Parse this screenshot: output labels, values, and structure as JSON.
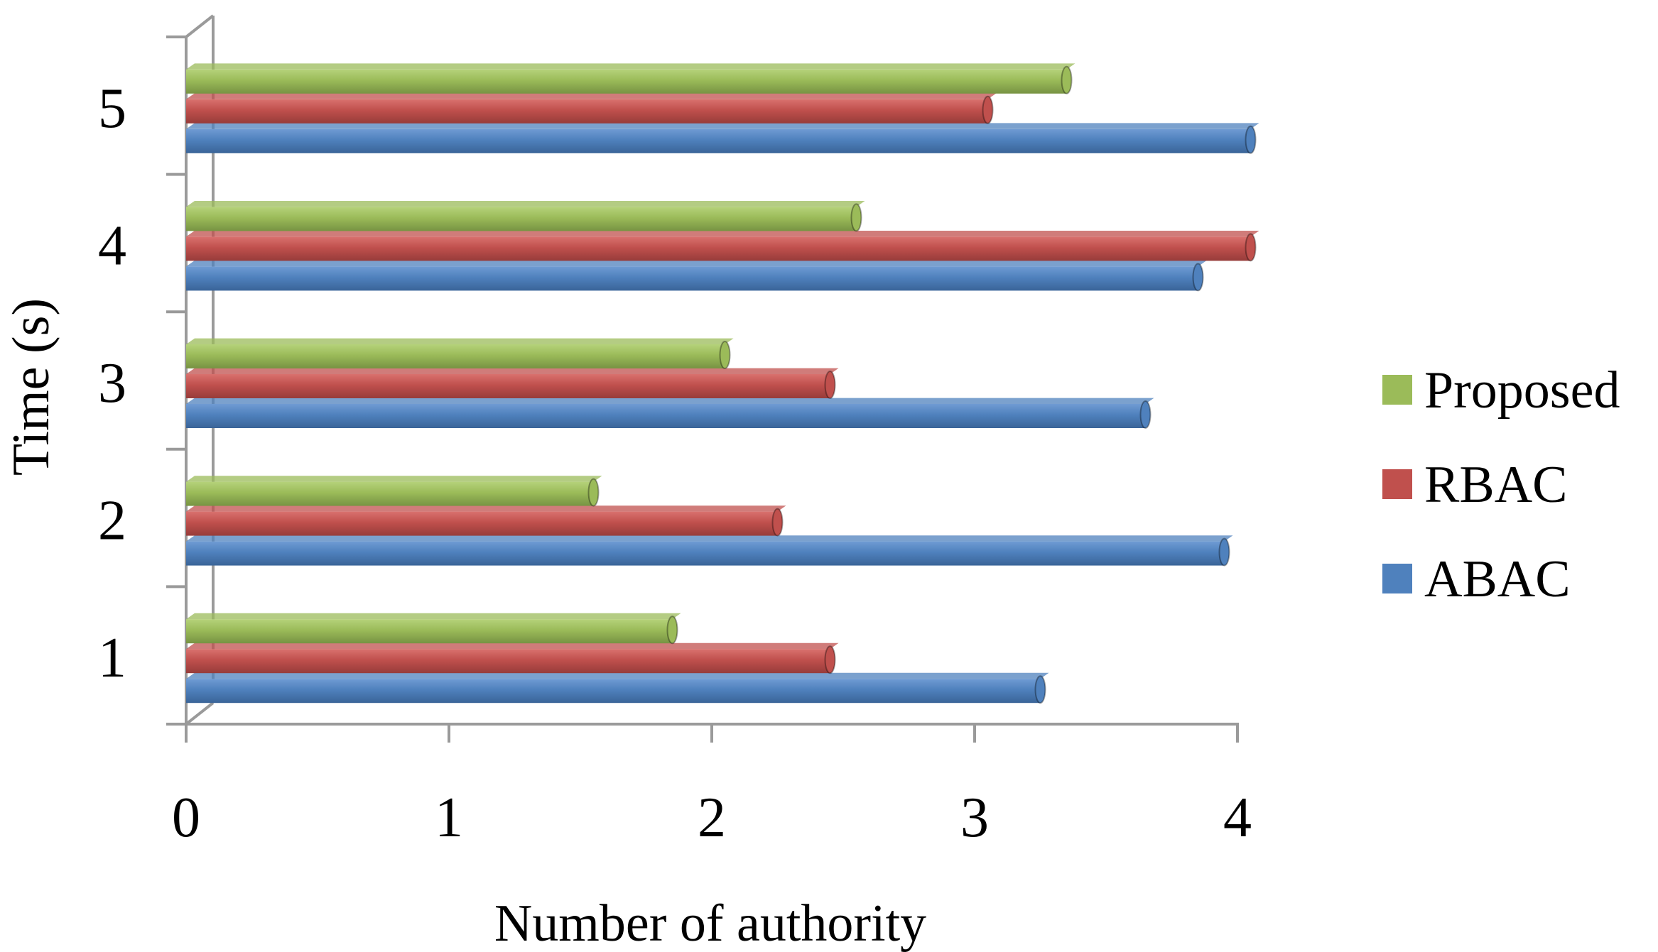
{
  "chart_data": {
    "type": "bar",
    "orientation": "horizontal",
    "style": "3d-bars",
    "categories": [
      "1",
      "2",
      "3",
      "4",
      "5"
    ],
    "series": [
      {
        "name": "ABAC",
        "color": "#4f81bd",
        "values": [
          3.25,
          3.95,
          3.65,
          3.85,
          4.05
        ]
      },
      {
        "name": "RBAC",
        "color": "#c0504d",
        "values": [
          2.45,
          2.25,
          2.45,
          4.05,
          3.05
        ]
      },
      {
        "name": "Proposed",
        "color": "#9bbb59",
        "values": [
          1.85,
          1.55,
          2.05,
          2.55,
          3.35
        ]
      }
    ],
    "xlabel": "Number of authority",
    "ylabel": "Time (s)",
    "xlim": [
      0,
      4
    ],
    "x_ticks": [
      "0",
      "1",
      "2",
      "3",
      "4"
    ],
    "legend": {
      "placement": "right",
      "entries": [
        "Proposed",
        "RBAC",
        "ABAC"
      ]
    },
    "grid": false
  }
}
